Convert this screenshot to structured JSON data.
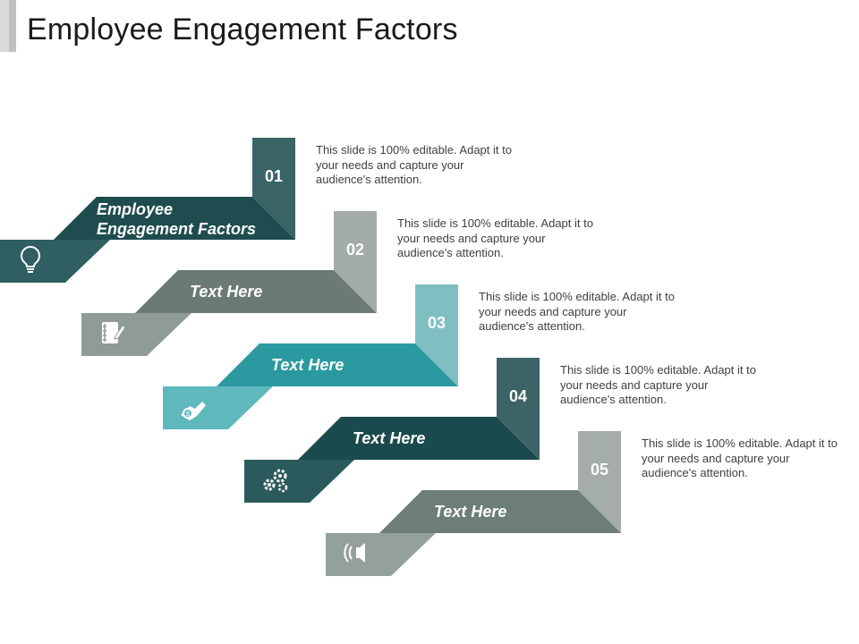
{
  "slide": {
    "title": "Employee Engagement Factors"
  },
  "steps": [
    {
      "number": "01",
      "label": "Employee Engagement Factors",
      "label_line1": "Employee",
      "label_line2": "Engagement Factors",
      "description": "This slide is 100% editable. Adapt it to your needs and capture your audience's attention.",
      "icon": "lightbulb-icon",
      "color_dark": "#1e4c4f",
      "color_mid": "#2f5f62",
      "color_tab": "#3a6466"
    },
    {
      "number": "02",
      "label": "Text Here",
      "description": "This slide is 100% editable. Adapt it to your needs and capture your audience's attention.",
      "icon": "notebook-icon",
      "color_dark": "#6b7a74",
      "color_mid": "#8e9b96",
      "color_tab": "#a3aca8"
    },
    {
      "number": "03",
      "label": "Text Here",
      "description": "This slide is 100% editable. Adapt it to your needs and capture your audience's attention.",
      "icon": "money-hand-icon",
      "color_dark": "#2a9aa0",
      "color_mid": "#5fb8bc",
      "color_tab": "#7fbfc2"
    },
    {
      "number": "04",
      "label": "Text Here",
      "description": "This slide is 100% editable. Adapt it to your needs and capture your audience's attention.",
      "icon": "gears-icon",
      "color_dark": "#1a4a4d",
      "color_mid": "#2b5a5d",
      "color_tab": "#3c6466"
    },
    {
      "number": "05",
      "label": "Text Here",
      "description": "This slide is 100% editable. Adapt it to your needs and capture your audience's attention.",
      "icon": "speaker-icon",
      "color_dark": "#6c7e76",
      "color_mid": "#94a09b",
      "color_tab": "#a4ada9"
    }
  ]
}
